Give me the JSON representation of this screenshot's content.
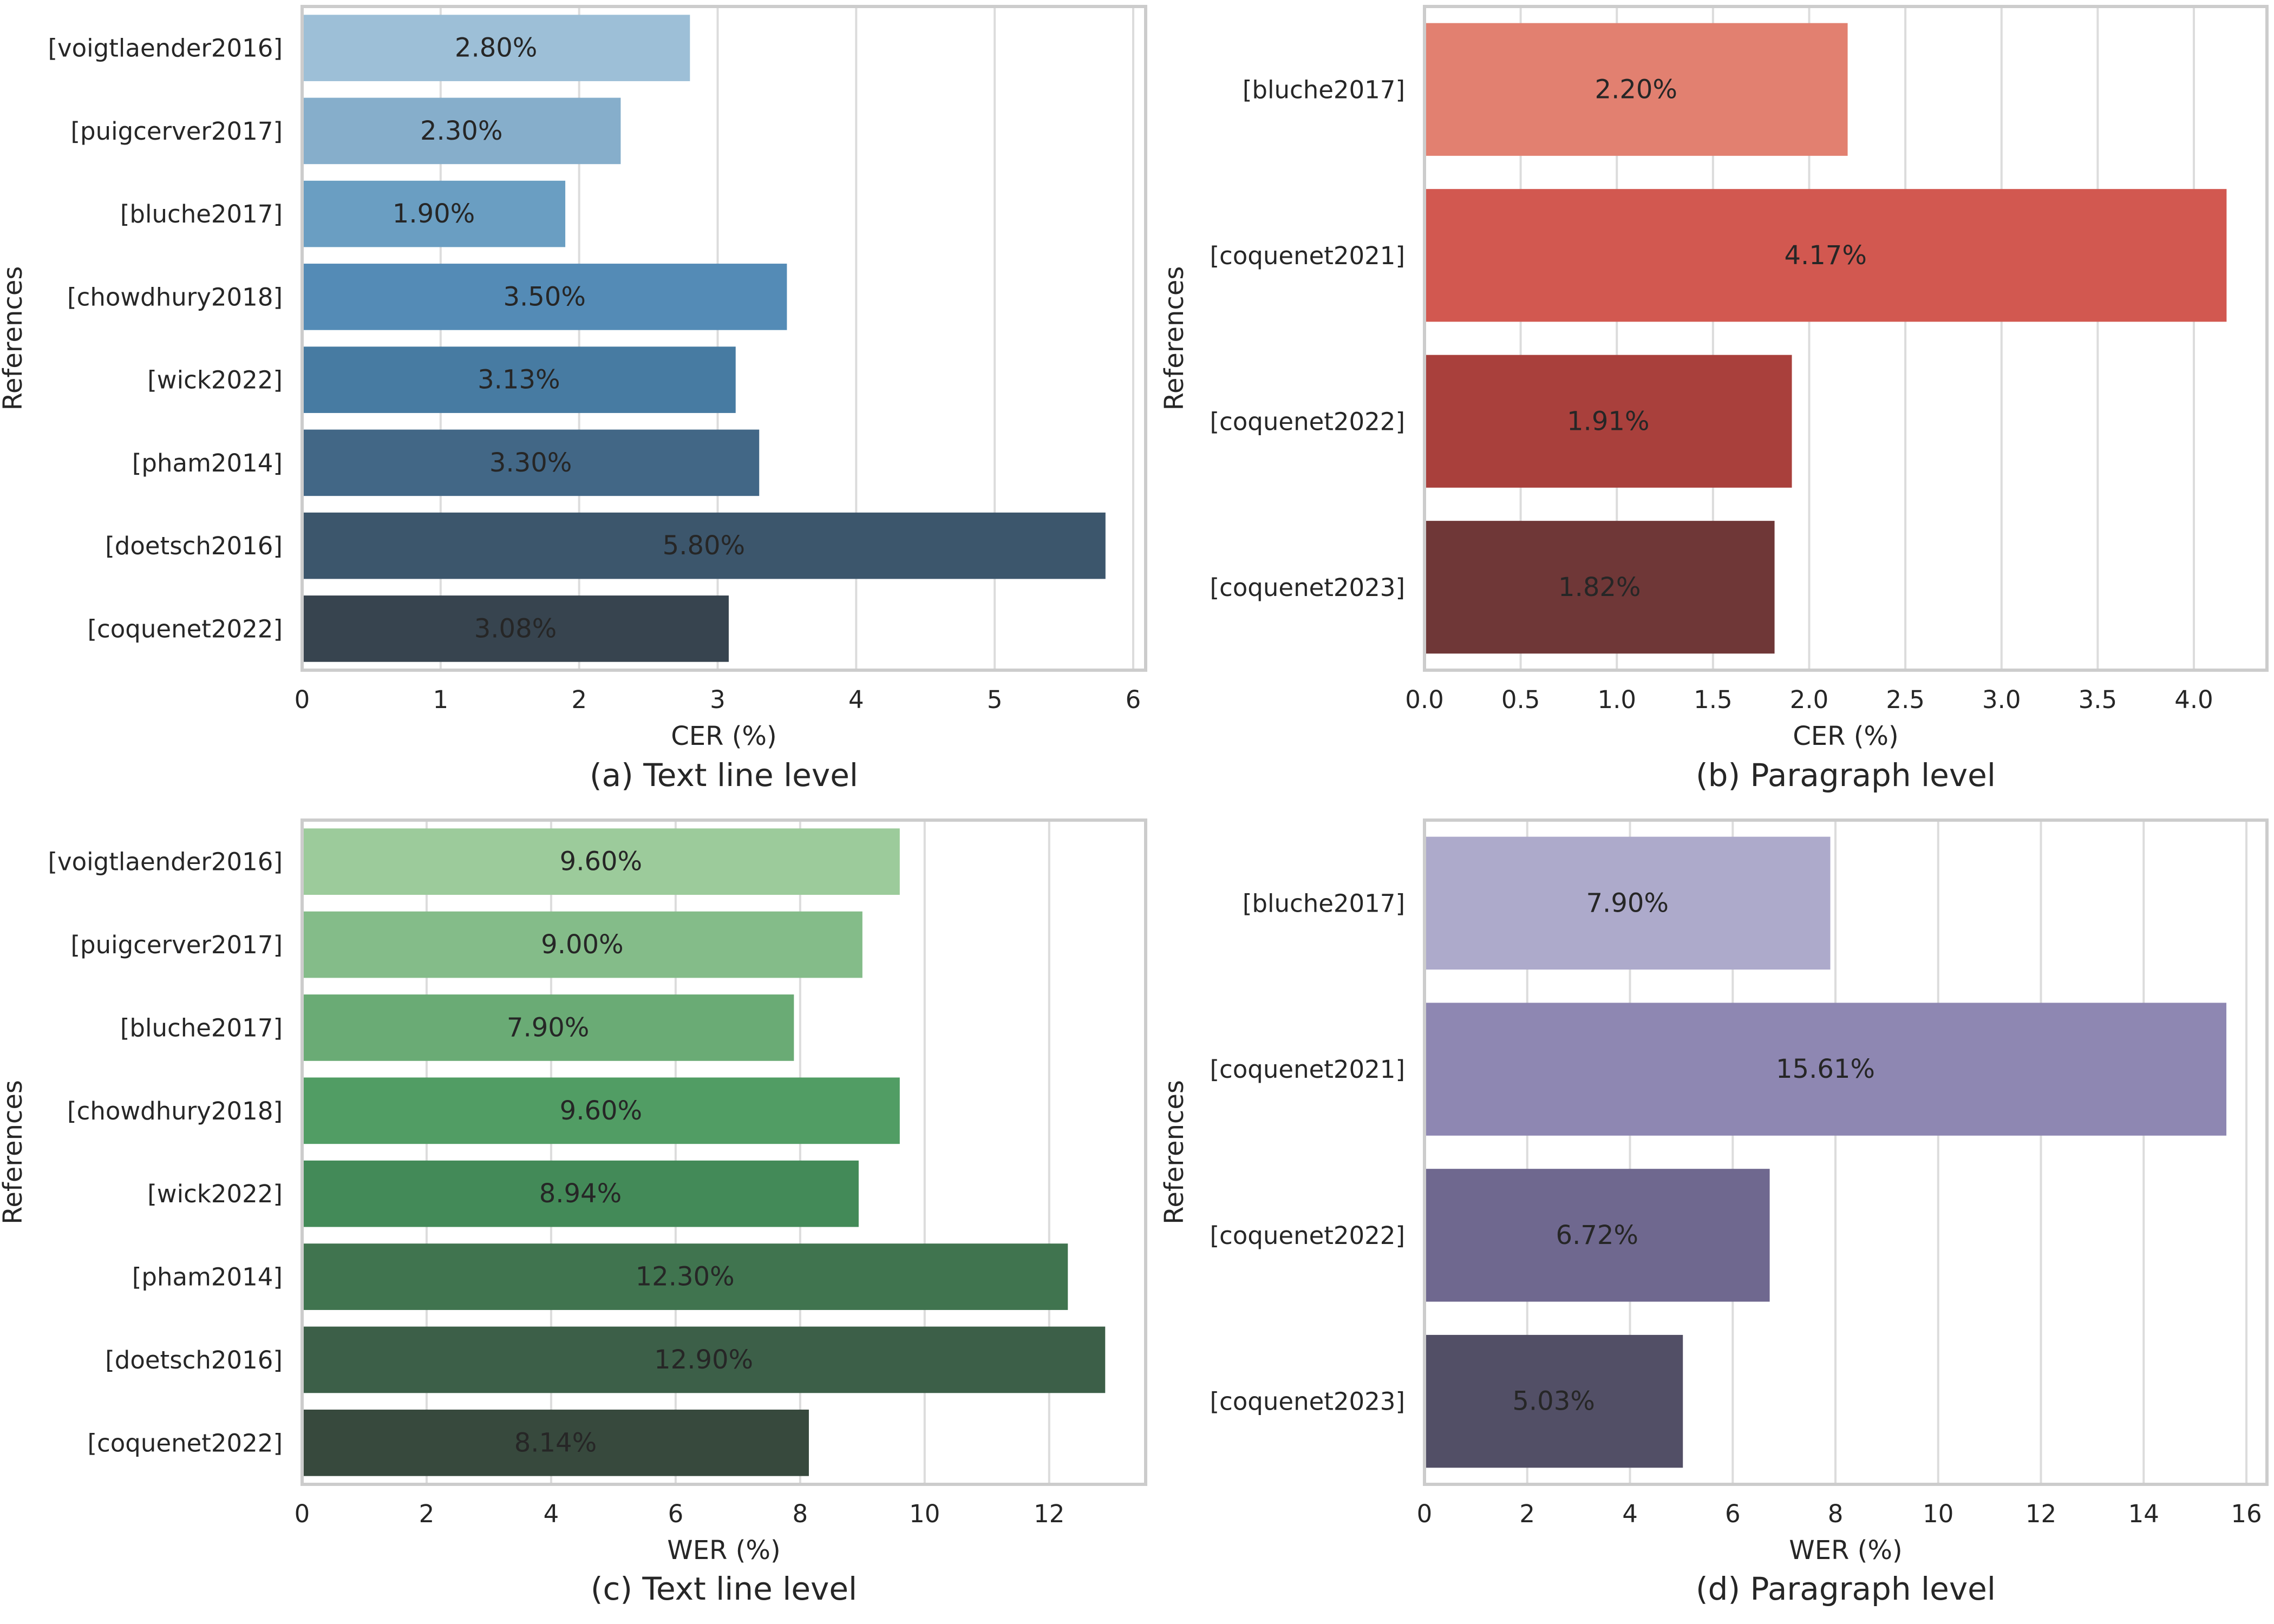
{
  "chart_data": [
    {
      "id": "a",
      "type": "bar",
      "orientation": "horizontal",
      "caption": "(a) Text line level",
      "xlabel": "CER (%)",
      "ylabel": "References",
      "xlim": [
        0,
        6.09
      ],
      "xticks": [
        0,
        1,
        2,
        3,
        4,
        5,
        6
      ],
      "xtick_labels": [
        "0",
        "1",
        "2",
        "3",
        "4",
        "5",
        "6"
      ],
      "grid": true,
      "categories": [
        "[voigtlaender2016]",
        "[puigcerver2017]",
        "[bluche2017]",
        "[chowdhury2018]",
        "[wick2022]",
        "[pham2014]",
        "[doetsch2016]",
        "[coquenet2022]"
      ],
      "values": [
        2.8,
        2.3,
        1.9,
        3.5,
        3.13,
        3.3,
        5.8,
        3.08
      ],
      "value_labels": [
        "2.80%",
        "2.30%",
        "1.90%",
        "3.50%",
        "3.13%",
        "3.30%",
        "5.80%",
        "3.08%"
      ],
      "colors": [
        "#9dbfd7",
        "#86aecb",
        "#6a9ec2",
        "#548bb6",
        "#477ba2",
        "#426786",
        "#3c566c",
        "#37444f"
      ]
    },
    {
      "id": "b",
      "type": "bar",
      "orientation": "horizontal",
      "caption": "(b)  Paragraph level",
      "xlabel": "CER (%)",
      "ylabel": "References",
      "xlim": [
        0,
        4.38
      ],
      "xticks": [
        0,
        0.5,
        1.0,
        1.5,
        2.0,
        2.5,
        3.0,
        3.5,
        4.0
      ],
      "xtick_labels": [
        "0.0",
        "0.5",
        "1.0",
        "1.5",
        "2.0",
        "2.5",
        "3.0",
        "3.5",
        "4.0"
      ],
      "grid": true,
      "categories": [
        "[bluche2017]",
        "[coquenet2021]",
        "[coquenet2022]",
        "[coquenet2023]"
      ],
      "values": [
        2.2,
        4.17,
        1.91,
        1.82
      ],
      "value_labels": [
        "2.20%",
        "4.17%",
        "1.91%",
        "1.82%"
      ],
      "colors": [
        "#e28070",
        "#d25850",
        "#a9403c",
        "#6f3737"
      ]
    },
    {
      "id": "c",
      "type": "bar",
      "orientation": "horizontal",
      "caption": "(c)  Text line level",
      "xlabel": "WER (%)",
      "ylabel": "References",
      "xlim": [
        0,
        13.55
      ],
      "xticks": [
        0,
        2,
        4,
        6,
        8,
        10,
        12
      ],
      "xtick_labels": [
        "0",
        "2",
        "4",
        "6",
        "8",
        "10",
        "12"
      ],
      "grid": true,
      "categories": [
        "[voigtlaender2016]",
        "[puigcerver2017]",
        "[bluche2017]",
        "[chowdhury2018]",
        "[wick2022]",
        "[pham2014]",
        "[doetsch2016]",
        "[coquenet2022]"
      ],
      "values": [
        9.6,
        9.0,
        7.9,
        9.6,
        8.94,
        12.3,
        12.9,
        8.14
      ],
      "value_labels": [
        "9.60%",
        "9.00%",
        "7.90%",
        "9.60%",
        "8.94%",
        "12.30%",
        "12.90%",
        "8.14%"
      ],
      "colors": [
        "#9ccb9b",
        "#84bc89",
        "#6aab75",
        "#519d64",
        "#438a58",
        "#40744f",
        "#3c5f48",
        "#37493d"
      ]
    },
    {
      "id": "d",
      "type": "bar",
      "orientation": "horizontal",
      "caption": "(d) Paragraph level",
      "xlabel": "WER (%)",
      "ylabel": "References",
      "xlim": [
        0,
        16.4
      ],
      "xticks": [
        0,
        2,
        4,
        6,
        8,
        10,
        12,
        14,
        16
      ],
      "xtick_labels": [
        "0",
        "2",
        "4",
        "6",
        "8",
        "10",
        "12",
        "14",
        "16"
      ],
      "grid": true,
      "categories": [
        "[bluche2017]",
        "[coquenet2021]",
        "[coquenet2022]",
        "[coquenet2023]"
      ],
      "values": [
        7.9,
        15.61,
        6.72,
        5.03
      ],
      "value_labels": [
        "7.90%",
        "15.61%",
        "6.72%",
        "5.03%"
      ],
      "colors": [
        "#adaacb",
        "#8e87b2",
        "#6f688f",
        "#524f66"
      ]
    }
  ]
}
